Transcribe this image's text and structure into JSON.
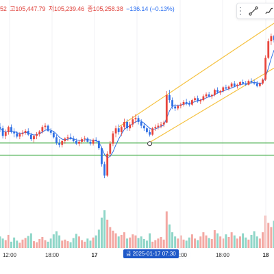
{
  "ohlc": {
    "open_partial": "52",
    "high": "고105,447.79",
    "low": "저105,239.46",
    "close": "종105,258.38",
    "change": "−136.14 (−0.13%)"
  },
  "toolbar": {
    "items": [
      {
        "icon": "trend-line-icon",
        "label": "Trend line"
      },
      {
        "icon": "brush-icon",
        "label": "Brush"
      }
    ]
  },
  "x_axis": {
    "labels": [
      "12:00",
      "18:00",
      "17",
      "12:00",
      "18:00",
      "18"
    ],
    "crosshair": "금 2025-01-17  07:30"
  },
  "colors": {
    "up": "#e8453c",
    "down": "#2f6fe4",
    "ma": "#2f6fe4",
    "channel": "#f5c242",
    "support": "#4caf50",
    "vol_up": "#f3a8a3",
    "vol_down": "#8fd6c8"
  },
  "chart_data": {
    "type": "candlestick",
    "y_range": [
      103600,
      106650
    ],
    "candles": [
      [
        104880,
        104940,
        104800,
        104860
      ],
      [
        104860,
        104900,
        104700,
        104740
      ],
      [
        104740,
        104840,
        104690,
        104800
      ],
      [
        104800,
        104900,
        104760,
        104880
      ],
      [
        104880,
        104920,
        104780,
        104800
      ],
      [
        104800,
        104860,
        104720,
        104780
      ],
      [
        104780,
        104820,
        104700,
        104730
      ],
      [
        104730,
        104800,
        104690,
        104770
      ],
      [
        104770,
        104830,
        104730,
        104790
      ],
      [
        104790,
        104850,
        104760,
        104820
      ],
      [
        104820,
        104860,
        104740,
        104760
      ],
      [
        104760,
        104790,
        104660,
        104690
      ],
      [
        104690,
        104760,
        104640,
        104740
      ],
      [
        104740,
        104800,
        104690,
        104770
      ],
      [
        104770,
        104830,
        104730,
        104810
      ],
      [
        104810,
        104910,
        104780,
        104880
      ],
      [
        104880,
        104940,
        104840,
        104900
      ],
      [
        104900,
        104920,
        104800,
        104820
      ],
      [
        104820,
        104860,
        104760,
        104790
      ],
      [
        104790,
        104820,
        104700,
        104720
      ],
      [
        104720,
        104760,
        104600,
        104630
      ],
      [
        104630,
        104690,
        104560,
        104600
      ],
      [
        104600,
        104680,
        104560,
        104660
      ],
      [
        104660,
        104720,
        104620,
        104700
      ],
      [
        104700,
        104760,
        104660,
        104720
      ],
      [
        104720,
        104780,
        104680,
        104700
      ],
      [
        104700,
        104740,
        104640,
        104660
      ],
      [
        104660,
        104700,
        104600,
        104620
      ],
      [
        104620,
        104680,
        104580,
        104650
      ],
      [
        104650,
        104720,
        104620,
        104690
      ],
      [
        104690,
        104740,
        104650,
        104700
      ],
      [
        104700,
        104720,
        104640,
        104650
      ],
      [
        104650,
        104690,
        104590,
        104620
      ],
      [
        104620,
        104700,
        104590,
        104680
      ],
      [
        104680,
        104720,
        104640,
        104660
      ],
      [
        104660,
        104680,
        104520,
        104550
      ],
      [
        104550,
        104570,
        104260,
        104300
      ],
      [
        104300,
        104340,
        104080,
        104120
      ],
      [
        104120,
        104500,
        104100,
        104460
      ],
      [
        104460,
        104660,
        104420,
        104620
      ],
      [
        104620,
        104820,
        104580,
        104780
      ],
      [
        104780,
        104900,
        104720,
        104860
      ],
      [
        104860,
        104920,
        104760,
        104800
      ],
      [
        104800,
        104900,
        104740,
        104880
      ],
      [
        104880,
        105010,
        104840,
        104960
      ],
      [
        104960,
        105000,
        104820,
        104860
      ],
      [
        104860,
        104960,
        104820,
        104920
      ],
      [
        104920,
        105050,
        104880,
        105000
      ],
      [
        105000,
        105080,
        104940,
        105020
      ],
      [
        105020,
        105060,
        104920,
        104960
      ],
      [
        104960,
        105000,
        104860,
        104900
      ],
      [
        104900,
        104940,
        104820,
        104860
      ],
      [
        104860,
        104880,
        104780,
        104800
      ],
      [
        104800,
        104840,
        104730,
        104760
      ],
      [
        104760,
        104880,
        104740,
        104860
      ],
      [
        104860,
        104920,
        104820,
        104880
      ],
      [
        104880,
        104940,
        104840,
        104900
      ],
      [
        104900,
        104960,
        104860,
        104920
      ],
      [
        104920,
        104980,
        104880,
        104950
      ],
      [
        104950,
        105440,
        104940,
        105380
      ],
      [
        105380,
        105460,
        105260,
        105300
      ],
      [
        105300,
        105340,
        105160,
        105200
      ],
      [
        105200,
        105240,
        105130,
        105170
      ],
      [
        105170,
        105230,
        105140,
        105210
      ],
      [
        105210,
        105260,
        105170,
        105230
      ],
      [
        105230,
        105300,
        105200,
        105270
      ],
      [
        105270,
        105320,
        105220,
        105250
      ],
      [
        105250,
        105290,
        105200,
        105230
      ],
      [
        105230,
        105320,
        105210,
        105300
      ],
      [
        105300,
        105360,
        105270,
        105330
      ],
      [
        105330,
        105370,
        105260,
        105280
      ],
      [
        105280,
        105320,
        105240,
        105300
      ],
      [
        105300,
        105390,
        105280,
        105360
      ],
      [
        105360,
        105420,
        105330,
        105390
      ],
      [
        105390,
        105430,
        105340,
        105360
      ],
      [
        105360,
        105400,
        105320,
        105380
      ],
      [
        105380,
        105480,
        105360,
        105460
      ],
      [
        105460,
        105500,
        105400,
        105420
      ],
      [
        105420,
        105460,
        105380,
        105440
      ],
      [
        105440,
        105520,
        105420,
        105500
      ],
      [
        105500,
        105540,
        105460,
        105480
      ],
      [
        105480,
        105530,
        105450,
        105510
      ],
      [
        105510,
        105580,
        105490,
        105560
      ],
      [
        105560,
        105600,
        105500,
        105520
      ],
      [
        105520,
        105560,
        105480,
        105540
      ],
      [
        105540,
        105600,
        105520,
        105580
      ],
      [
        105580,
        105620,
        105540,
        105560
      ],
      [
        105560,
        105600,
        105520,
        105540
      ],
      [
        105540,
        105620,
        105530,
        105600
      ],
      [
        105600,
        105640,
        105560,
        105580
      ],
      [
        105580,
        105620,
        105540,
        105560
      ],
      [
        105560,
        105600,
        105500,
        105520
      ],
      [
        105520,
        105580,
        105500,
        105560
      ],
      [
        105560,
        105640,
        105540,
        105620
      ],
      [
        105620,
        106000,
        105600,
        105960
      ],
      [
        105960,
        106260,
        105940,
        106220
      ],
      [
        106220,
        106340,
        106160,
        106300
      ],
      [
        106300,
        106320,
        106200,
        106240
      ]
    ],
    "volumes": [
      22,
      18,
      15,
      25,
      12,
      20,
      14,
      10,
      16,
      19,
      23,
      28,
      13,
      11,
      17,
      21,
      15,
      12,
      18,
      26,
      32,
      24,
      14,
      16,
      13,
      11,
      19,
      27,
      22,
      15,
      12,
      18,
      14,
      20,
      24,
      35,
      58,
      72,
      54,
      40,
      33,
      28,
      22,
      25,
      30,
      18,
      20,
      26,
      24,
      19,
      22,
      17,
      14,
      28,
      12,
      15,
      18,
      21,
      16,
      70,
      45,
      30,
      22,
      18,
      24,
      16,
      14,
      20,
      26,
      18,
      15,
      22,
      30,
      24,
      19,
      17,
      34,
      28,
      22,
      18,
      26,
      21,
      30,
      24,
      18,
      22,
      28,
      20,
      16,
      25,
      32,
      22,
      18,
      30,
      62,
      48,
      40,
      52
    ],
    "moving_average_values": [
      104860,
      104820,
      104800,
      104810,
      104820,
      104810,
      104790,
      104780,
      104785,
      104795,
      104790,
      104770,
      104755,
      104760,
      104775,
      104800,
      104830,
      104840,
      104830,
      104810,
      104770,
      104720,
      104690,
      104680,
      104690,
      104700,
      104695,
      104680,
      104670,
      104670,
      104680,
      104685,
      104675,
      104670,
      104670,
      104640,
      104560,
      104450,
      104400,
      104420,
      104490,
      104600,
      104690,
      104770,
      104840,
      104880,
      104900,
      104930,
      104960,
      104980,
      104970,
      104940,
      104900,
      104860,
      104840,
      104850,
      104870,
      104890,
      104910,
      105020,
      105130,
      105200,
      105220,
      105220,
      105225,
      105235,
      105245,
      105250,
      105260,
      105275,
      105290,
      105300,
      105315,
      105335,
      105355,
      105365,
      105385,
      105410,
      105425,
      105440,
      105460,
      105475,
      105490,
      105510,
      105525,
      105540,
      105550,
      105555,
      105560,
      105570,
      105575,
      105570,
      105560,
      105570,
      105660,
      105800,
      105950,
      106080
    ],
    "channel_upper": [
      [
        42,
        104880
      ],
      [
        97,
        106500
      ]
    ],
    "channel_lower": [
      [
        53,
        104640
      ],
      [
        97,
        105800
      ]
    ],
    "support_levels": [
      104630,
      104440
    ],
    "anchor_point": [
      53,
      104620
    ]
  }
}
